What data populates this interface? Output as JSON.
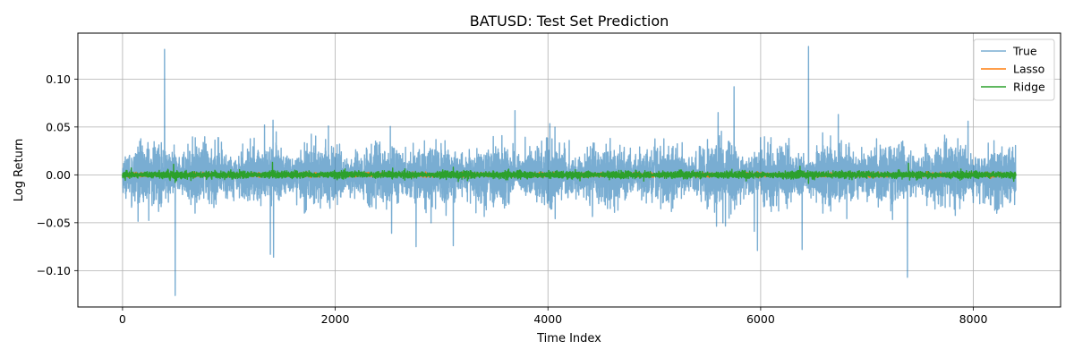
{
  "chart_data": {
    "type": "line",
    "title": "BATUSD: Test Set Prediction",
    "xlabel": "Time Index",
    "ylabel": "Log Return",
    "xlim": [
      -420,
      8820
    ],
    "ylim": [
      -0.138,
      0.148
    ],
    "xticks": [
      0,
      2000,
      4000,
      6000,
      8000
    ],
    "xtick_labels": [
      "0",
      "2000",
      "4000",
      "6000",
      "8000"
    ],
    "yticks": [
      -0.1,
      -0.05,
      0.0,
      0.05,
      0.1
    ],
    "ytick_labels": [
      "−0.10",
      "−0.05",
      "0.00",
      "0.05",
      "0.10"
    ],
    "grid": true,
    "legend_position": "top-right",
    "n_points": 8400,
    "series": [
      {
        "name": "True",
        "color": "#1f77b4",
        "opacity": 0.6,
        "typical_amplitude": 0.012,
        "spikes": [
          [
            395,
            0.131
          ],
          [
            495,
            -0.126
          ],
          [
            1335,
            0.052
          ],
          [
            1390,
            -0.083
          ],
          [
            1415,
            0.057
          ],
          [
            1420,
            -0.086
          ],
          [
            2530,
            -0.061
          ],
          [
            2760,
            -0.075
          ],
          [
            3110,
            -0.074
          ],
          [
            3690,
            0.067
          ],
          [
            5600,
            0.065
          ],
          [
            5750,
            0.092
          ],
          [
            5940,
            -0.059
          ],
          [
            5970,
            -0.079
          ],
          [
            6390,
            -0.078
          ],
          [
            6450,
            0.134
          ],
          [
            6730,
            0.063
          ],
          [
            7380,
            -0.107
          ],
          [
            7950,
            0.056
          ]
        ]
      },
      {
        "name": "Lasso",
        "color": "#ff7f0e",
        "opacity": 1,
        "typical_amplitude": 0.0008
      },
      {
        "name": "Ridge",
        "color": "#2ca02c",
        "opacity": 1,
        "typical_amplitude": 0.0015,
        "spikes": [
          [
            480,
            0.011
          ],
          [
            495,
            -0.008
          ],
          [
            1410,
            0.013
          ],
          [
            2540,
            0.007
          ],
          [
            3110,
            0.008
          ],
          [
            6370,
            0.009
          ],
          [
            6450,
            -0.009
          ],
          [
            7390,
            0.012
          ]
        ]
      }
    ]
  }
}
